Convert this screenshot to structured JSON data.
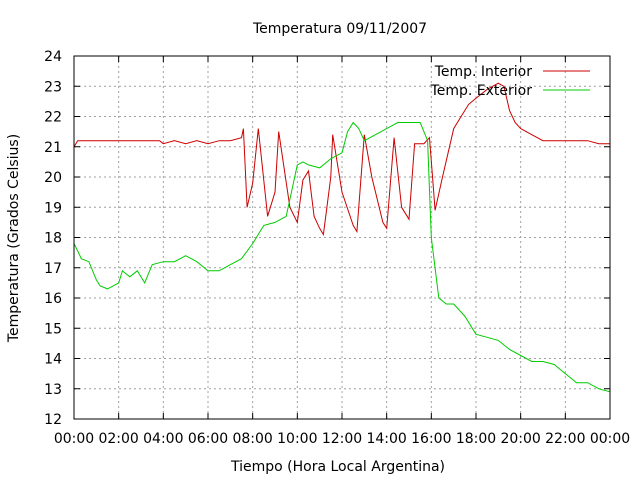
{
  "chart_data": {
    "type": "line",
    "title": "Temperatura 09/11/2007",
    "xlabel": "Tiempo (Hora Local Argentina)",
    "ylabel": "Temperatura (Grados Celsius)",
    "xlim": [
      "00:00",
      "24:00"
    ],
    "ylim": [
      12,
      24
    ],
    "grid": true,
    "legend_position": "top-right",
    "x_ticks": [
      "00:00",
      "02:00",
      "04:00",
      "06:00",
      "08:00",
      "10:00",
      "12:00",
      "14:00",
      "16:00",
      "18:00",
      "20:00",
      "22:00",
      "00:00"
    ],
    "y_ticks": [
      "12",
      "13",
      "14",
      "15",
      "16",
      "17",
      "18",
      "19",
      "20",
      "21",
      "22",
      "23",
      "24"
    ],
    "series": [
      {
        "name": "Temp. Interior",
        "color": "#cc0000",
        "points": [
          [
            "00:00",
            21.0
          ],
          [
            "00:10",
            21.2
          ],
          [
            "01:00",
            21.2
          ],
          [
            "02:00",
            21.2
          ],
          [
            "03:00",
            21.2
          ],
          [
            "03:50",
            21.2
          ],
          [
            "04:00",
            21.1
          ],
          [
            "04:30",
            21.2
          ],
          [
            "05:00",
            21.1
          ],
          [
            "05:30",
            21.2
          ],
          [
            "06:00",
            21.1
          ],
          [
            "06:30",
            21.2
          ],
          [
            "07:00",
            21.2
          ],
          [
            "07:30",
            21.3
          ],
          [
            "07:35",
            21.6
          ],
          [
            "07:45",
            19.0
          ],
          [
            "08:00",
            19.8
          ],
          [
            "08:15",
            21.6
          ],
          [
            "08:40",
            18.7
          ],
          [
            "09:00",
            19.5
          ],
          [
            "09:10",
            21.5
          ],
          [
            "09:40",
            19.0
          ],
          [
            "10:00",
            18.5
          ],
          [
            "10:15",
            19.9
          ],
          [
            "10:30",
            20.2
          ],
          [
            "10:45",
            18.7
          ],
          [
            "11:00",
            18.3
          ],
          [
            "11:10",
            18.1
          ],
          [
            "11:30",
            20.0
          ],
          [
            "11:35",
            21.4
          ],
          [
            "12:00",
            19.5
          ],
          [
            "12:30",
            18.4
          ],
          [
            "12:40",
            18.2
          ],
          [
            "13:00",
            21.4
          ],
          [
            "13:20",
            20.0
          ],
          [
            "13:50",
            18.5
          ],
          [
            "14:00",
            18.3
          ],
          [
            "14:20",
            21.3
          ],
          [
            "14:40",
            19.0
          ],
          [
            "15:00",
            18.6
          ],
          [
            "15:15",
            21.1
          ],
          [
            "15:40",
            21.1
          ],
          [
            "15:55",
            21.3
          ],
          [
            "16:10",
            18.9
          ],
          [
            "16:30",
            20.0
          ],
          [
            "17:00",
            21.6
          ],
          [
            "17:20",
            22.0
          ],
          [
            "17:40",
            22.4
          ],
          [
            "18:00",
            22.6
          ],
          [
            "18:30",
            22.9
          ],
          [
            "19:00",
            23.1
          ],
          [
            "19:15",
            23.0
          ],
          [
            "19:30",
            22.2
          ],
          [
            "19:45",
            21.8
          ],
          [
            "20:00",
            21.6
          ],
          [
            "20:30",
            21.4
          ],
          [
            "21:00",
            21.2
          ],
          [
            "22:00",
            21.2
          ],
          [
            "23:00",
            21.2
          ],
          [
            "23:30",
            21.1
          ],
          [
            "24:00",
            21.1
          ]
        ]
      },
      {
        "name": "Temp. Exterior",
        "color": "#00cc00",
        "points": [
          [
            "00:00",
            17.8
          ],
          [
            "00:20",
            17.3
          ],
          [
            "00:40",
            17.2
          ],
          [
            "01:00",
            16.6
          ],
          [
            "01:10",
            16.4
          ],
          [
            "01:30",
            16.3
          ],
          [
            "02:00",
            16.5
          ],
          [
            "02:10",
            16.9
          ],
          [
            "02:30",
            16.7
          ],
          [
            "02:50",
            16.9
          ],
          [
            "03:10",
            16.5
          ],
          [
            "03:20",
            16.8
          ],
          [
            "03:30",
            17.1
          ],
          [
            "04:00",
            17.2
          ],
          [
            "04:30",
            17.2
          ],
          [
            "05:00",
            17.4
          ],
          [
            "05:30",
            17.2
          ],
          [
            "06:00",
            16.9
          ],
          [
            "06:30",
            16.9
          ],
          [
            "07:00",
            17.1
          ],
          [
            "07:30",
            17.3
          ],
          [
            "08:00",
            17.8
          ],
          [
            "08:30",
            18.4
          ],
          [
            "09:00",
            18.5
          ],
          [
            "09:30",
            18.7
          ],
          [
            "10:00",
            20.4
          ],
          [
            "10:15",
            20.5
          ],
          [
            "10:30",
            20.4
          ],
          [
            "11:00",
            20.3
          ],
          [
            "11:30",
            20.6
          ],
          [
            "12:00",
            20.8
          ],
          [
            "12:15",
            21.5
          ],
          [
            "12:30",
            21.8
          ],
          [
            "12:45",
            21.6
          ],
          [
            "13:00",
            21.2
          ],
          [
            "13:30",
            21.4
          ],
          [
            "14:00",
            21.6
          ],
          [
            "14:30",
            21.8
          ],
          [
            "15:00",
            21.8
          ],
          [
            "15:30",
            21.8
          ],
          [
            "15:50",
            21.2
          ],
          [
            "16:00",
            18.0
          ],
          [
            "16:20",
            16.0
          ],
          [
            "16:40",
            15.8
          ],
          [
            "17:00",
            15.8
          ],
          [
            "17:30",
            15.4
          ],
          [
            "18:00",
            14.8
          ],
          [
            "18:30",
            14.7
          ],
          [
            "19:00",
            14.6
          ],
          [
            "19:30",
            14.3
          ],
          [
            "20:00",
            14.1
          ],
          [
            "20:30",
            13.9
          ],
          [
            "21:00",
            13.9
          ],
          [
            "21:30",
            13.8
          ],
          [
            "22:00",
            13.5
          ],
          [
            "22:30",
            13.2
          ],
          [
            "23:00",
            13.2
          ],
          [
            "23:30",
            13.0
          ],
          [
            "24:00",
            12.9
          ]
        ]
      }
    ]
  }
}
